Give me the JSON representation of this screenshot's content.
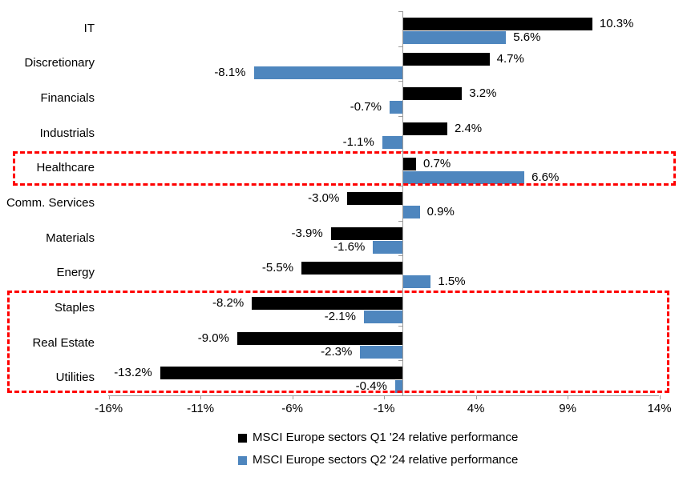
{
  "chart_data": {
    "type": "bar",
    "orientation": "horizontal",
    "title": "",
    "categories": [
      "IT",
      "Discretionary",
      "Financials",
      "Industrials",
      "Healthcare",
      "Comm. Services",
      "Materials",
      "Energy",
      "Staples",
      "Real Estate",
      "Utilities"
    ],
    "series": [
      {
        "name": "MSCI Europe sectors Q1 '24 relative performance",
        "color": "#000000",
        "values": [
          10.3,
          4.7,
          3.2,
          2.4,
          0.7,
          -3.0,
          -3.9,
          -5.5,
          -8.2,
          -9.0,
          -13.2
        ],
        "labels": [
          "10.3%",
          "4.7%",
          "3.2%",
          "2.4%",
          "0.7%",
          "-3.0%",
          "-3.9%",
          "-5.5%",
          "-8.2%",
          "-9.0%",
          "-13.2%"
        ]
      },
      {
        "name": "MSCI Europe sectors Q2 '24 relative performance",
        "color": "#4e86be",
        "values": [
          5.6,
          -8.1,
          -0.7,
          -1.1,
          6.6,
          0.9,
          -1.6,
          1.5,
          -2.1,
          -2.3,
          -0.4
        ],
        "labels": [
          "5.6%",
          "-8.1%",
          "-0.7%",
          "-1.1%",
          "6.6%",
          "0.9%",
          "-1.6%",
          "1.5%",
          "-2.1%",
          "-2.3%",
          "-0.4%"
        ]
      }
    ],
    "x_axis": {
      "min": -16,
      "max": 14,
      "unit": "%",
      "ticks": [
        {
          "value": -16,
          "label": "-16%"
        },
        {
          "value": -11,
          "label": "-11%"
        },
        {
          "value": -6,
          "label": "-6%"
        },
        {
          "value": -1,
          "label": "-1%"
        },
        {
          "value": 4,
          "label": "4%"
        },
        {
          "value": 9,
          "label": "9%"
        },
        {
          "value": 14,
          "label": "14%"
        }
      ]
    },
    "grid": false,
    "legend_position": "bottom",
    "highlights": [
      {
        "sectors": [
          "Healthcare"
        ],
        "color": "#ff0000",
        "style": "dashed"
      },
      {
        "sectors": [
          "Staples",
          "Real Estate",
          "Utilities"
        ],
        "color": "#ff0000",
        "style": "dashed"
      }
    ]
  },
  "colors": {
    "background": "#ffffff",
    "axis": "#9c9c9c",
    "text": "#000000",
    "q1_bar": "#000000",
    "q2_bar": "#4e86be",
    "highlight": "#ff0000"
  }
}
